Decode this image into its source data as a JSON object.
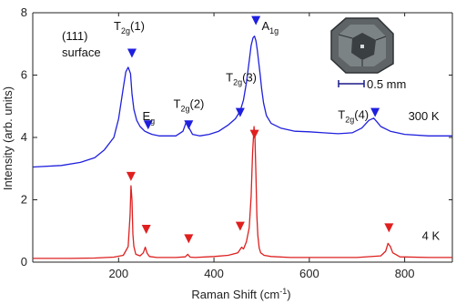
{
  "chart_data": {
    "type": "line",
    "xlabel": "Raman Shift (cm",
    "xlabel_sup": "-1",
    "xlabel_close": ")",
    "ylabel": "Intensity (arb. units)",
    "xlim": [
      20,
      900
    ],
    "ylim": [
      0,
      8
    ],
    "xticks": [
      200,
      400,
      600,
      800
    ],
    "yticks": [
      0,
      2,
      4,
      6,
      8
    ],
    "surface_label": [
      "(111)",
      "surface"
    ],
    "scale_bar_label": "0.5 mm",
    "series": [
      {
        "name": "300 K",
        "color": "#2020dd",
        "x": [
          20,
          80,
          120,
          150,
          170,
          190,
          200,
          210,
          215,
          220,
          225,
          228,
          232,
          238,
          245,
          255,
          262,
          270,
          285,
          300,
          320,
          335,
          342,
          348,
          355,
          370,
          390,
          410,
          430,
          445,
          455,
          462,
          468,
          474,
          478,
          482,
          485,
          488,
          491,
          494,
          497,
          500,
          504,
          510,
          520,
          540,
          570,
          600,
          630,
          660,
          690,
          710,
          725,
          735,
          742,
          750,
          770,
          800,
          850,
          900
        ],
        "y": [
          3.05,
          3.1,
          3.2,
          3.35,
          3.6,
          4.0,
          4.6,
          5.6,
          6.1,
          6.25,
          6.05,
          5.4,
          4.9,
          4.55,
          4.35,
          4.2,
          4.15,
          4.1,
          4.05,
          4.05,
          4.05,
          4.2,
          4.5,
          4.3,
          4.1,
          4.05,
          4.1,
          4.2,
          4.4,
          4.6,
          4.85,
          5.2,
          5.75,
          6.45,
          6.95,
          7.2,
          7.25,
          7.1,
          6.8,
          6.4,
          6.0,
          5.55,
          5.1,
          4.7,
          4.45,
          4.3,
          4.2,
          4.18,
          4.15,
          4.12,
          4.15,
          4.3,
          4.55,
          4.62,
          4.5,
          4.35,
          4.2,
          4.1,
          4.05,
          4.05
        ]
      },
      {
        "name": "4 K",
        "color": "#dd2020",
        "x": [
          20,
          100,
          150,
          190,
          210,
          220,
          224,
          226,
          228,
          230,
          232,
          236,
          245,
          252,
          256,
          260,
          265,
          280,
          320,
          340,
          345,
          350,
          360,
          400,
          430,
          450,
          458,
          462,
          468,
          474,
          478,
          481,
          484,
          486,
          488,
          490,
          492,
          495,
          498,
          505,
          520,
          560,
          620,
          700,
          750,
          760,
          765,
          770,
          775,
          790,
          850,
          900
        ],
        "y": [
          0.12,
          0.12,
          0.13,
          0.16,
          0.22,
          0.5,
          1.5,
          2.45,
          2.0,
          0.9,
          0.5,
          0.25,
          0.2,
          0.3,
          0.48,
          0.28,
          0.18,
          0.15,
          0.15,
          0.17,
          0.25,
          0.16,
          0.15,
          0.18,
          0.22,
          0.3,
          0.48,
          0.42,
          0.65,
          1.1,
          2.1,
          3.5,
          4.35,
          4.0,
          2.8,
          1.5,
          0.85,
          0.45,
          0.3,
          0.22,
          0.18,
          0.15,
          0.15,
          0.15,
          0.2,
          0.35,
          0.6,
          0.5,
          0.3,
          0.17,
          0.15,
          0.15
        ]
      }
    ],
    "temperature_labels": [
      {
        "text": "300 K",
        "x": 840,
        "y": 4.55
      },
      {
        "text": "4 K",
        "x": 855,
        "y": 0.72
      }
    ],
    "peak_labels": [
      {
        "base": "T",
        "sub": "2g",
        "tail": "(1)",
        "x": 190,
        "y": 7.45
      },
      {
        "base": "E",
        "sub": "g",
        "tail": "",
        "x": 250,
        "y": 4.55
      },
      {
        "base": "T",
        "sub": "2g",
        "tail": "(2)",
        "x": 315,
        "y": 4.95
      },
      {
        "base": "T",
        "sub": "2g",
        "tail": "(3)",
        "x": 425,
        "y": 5.8
      },
      {
        "base": "A",
        "sub": "1g",
        "tail": "",
        "x": 500,
        "y": 7.45
      },
      {
        "base": "T",
        "sub": "2g",
        "tail": "(4)",
        "x": 660,
        "y": 4.6
      }
    ],
    "markers_300K": [
      {
        "x": 228,
        "y": 6.7
      },
      {
        "x": 262,
        "y": 4.4
      },
      {
        "x": 347,
        "y": 4.4
      },
      {
        "x": 455,
        "y": 4.8
      },
      {
        "x": 488,
        "y": 7.75
      },
      {
        "x": 738,
        "y": 4.8
      }
    ],
    "markers_4K": [
      {
        "x": 226,
        "y": 2.75
      },
      {
        "x": 258,
        "y": 1.05
      },
      {
        "x": 347,
        "y": 0.75
      },
      {
        "x": 455,
        "y": 1.15
      },
      {
        "x": 485,
        "y": 4.1
      },
      {
        "x": 767,
        "y": 1.1
      }
    ],
    "marker_colors": {
      "300K": "#1f1fe0",
      "4K": "#e01f1f"
    }
  }
}
